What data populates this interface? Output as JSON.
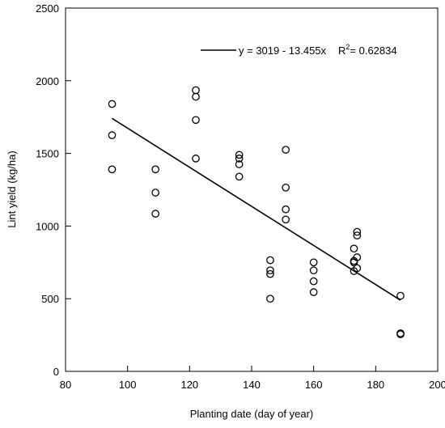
{
  "chart_data": {
    "type": "scatter",
    "title": "",
    "xlabel": "Planting date (day of year)",
    "ylabel": "Lint yield (kg/ha)",
    "xlim": [
      80,
      200
    ],
    "ylim": [
      0,
      2500
    ],
    "xticks": [
      80,
      100,
      120,
      140,
      160,
      180,
      200
    ],
    "yticks": [
      0,
      500,
      1000,
      1500,
      2000,
      2500
    ],
    "grid": false,
    "legend_position": "top-right",
    "series": [
      {
        "marker": "open-circle",
        "points": [
          {
            "x": 95,
            "y": 1840
          },
          {
            "x": 95,
            "y": 1625
          },
          {
            "x": 95,
            "y": 1390
          },
          {
            "x": 109,
            "y": 1390
          },
          {
            "x": 109,
            "y": 1230
          },
          {
            "x": 109,
            "y": 1085
          },
          {
            "x": 122,
            "y": 1935
          },
          {
            "x": 122,
            "y": 1890
          },
          {
            "x": 122,
            "y": 1730
          },
          {
            "x": 122,
            "y": 1465
          },
          {
            "x": 136,
            "y": 1490
          },
          {
            "x": 136,
            "y": 1465
          },
          {
            "x": 136,
            "y": 1425
          },
          {
            "x": 136,
            "y": 1340
          },
          {
            "x": 146,
            "y": 765
          },
          {
            "x": 146,
            "y": 695
          },
          {
            "x": 146,
            "y": 670
          },
          {
            "x": 146,
            "y": 500
          },
          {
            "x": 151,
            "y": 1525
          },
          {
            "x": 151,
            "y": 1265
          },
          {
            "x": 151,
            "y": 1115
          },
          {
            "x": 151,
            "y": 1045
          },
          {
            "x": 160,
            "y": 750
          },
          {
            "x": 160,
            "y": 695
          },
          {
            "x": 160,
            "y": 620
          },
          {
            "x": 160,
            "y": 545
          },
          {
            "x": 173,
            "y": 845
          },
          {
            "x": 173,
            "y": 760
          },
          {
            "x": 173,
            "y": 750
          },
          {
            "x": 173,
            "y": 690
          },
          {
            "x": 174,
            "y": 960
          },
          {
            "x": 174,
            "y": 935
          },
          {
            "x": 174,
            "y": 785
          },
          {
            "x": 174,
            "y": 710
          },
          {
            "x": 188,
            "y": 520
          },
          {
            "x": 188,
            "y": 262
          },
          {
            "x": 188,
            "y": 255
          }
        ]
      }
    ],
    "fit_line": {
      "intercept": 3019,
      "slope": -13.455,
      "x_range": [
        95,
        188
      ],
      "equation_label": "y = 3019 - 13.455x",
      "r2_prefix": "R",
      "r2_sup": "2",
      "r2_value": "= 0.62834"
    }
  }
}
